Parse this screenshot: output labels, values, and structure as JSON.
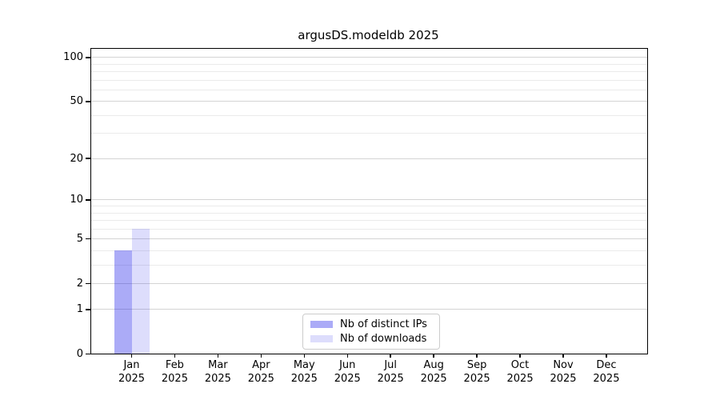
{
  "chart_data": {
    "type": "bar",
    "title": "argusDS.modeldb 2025",
    "categories": [
      "Jan",
      "Feb",
      "Mar",
      "Apr",
      "May",
      "Jun",
      "Jul",
      "Aug",
      "Sep",
      "Oct",
      "Nov",
      "Dec"
    ],
    "category_year": "2025",
    "series": [
      {
        "name": "Nb of distinct IPs",
        "color": "#1515e8",
        "alpha": 0.36,
        "values": [
          4,
          0,
          0,
          0,
          0,
          0,
          0,
          0,
          0,
          0,
          0,
          0
        ]
      },
      {
        "name": "Nb of downloads",
        "color": "#1515e8",
        "alpha": 0.145,
        "values": [
          6,
          0,
          0,
          0,
          0,
          0,
          0,
          0,
          0,
          0,
          0,
          0
        ]
      }
    ],
    "xlabel": "",
    "ylabel": "",
    "y_scale": "log1p",
    "y_ticks": [
      0,
      1,
      2,
      5,
      10,
      20,
      50,
      100
    ],
    "y_minor_ticks": [
      3,
      4,
      6,
      7,
      8,
      9,
      30,
      40,
      60,
      70,
      80,
      90
    ],
    "ylim": [
      0,
      117
    ],
    "grid": true,
    "legend_position": "lower center"
  },
  "colors": {
    "grid_major": "#d4d4d4",
    "grid_minor": "#ebebeb",
    "spine": "#000000",
    "text": "#000000",
    "legend_border": "#cccccc",
    "legend_bg": "#ffffff"
  }
}
